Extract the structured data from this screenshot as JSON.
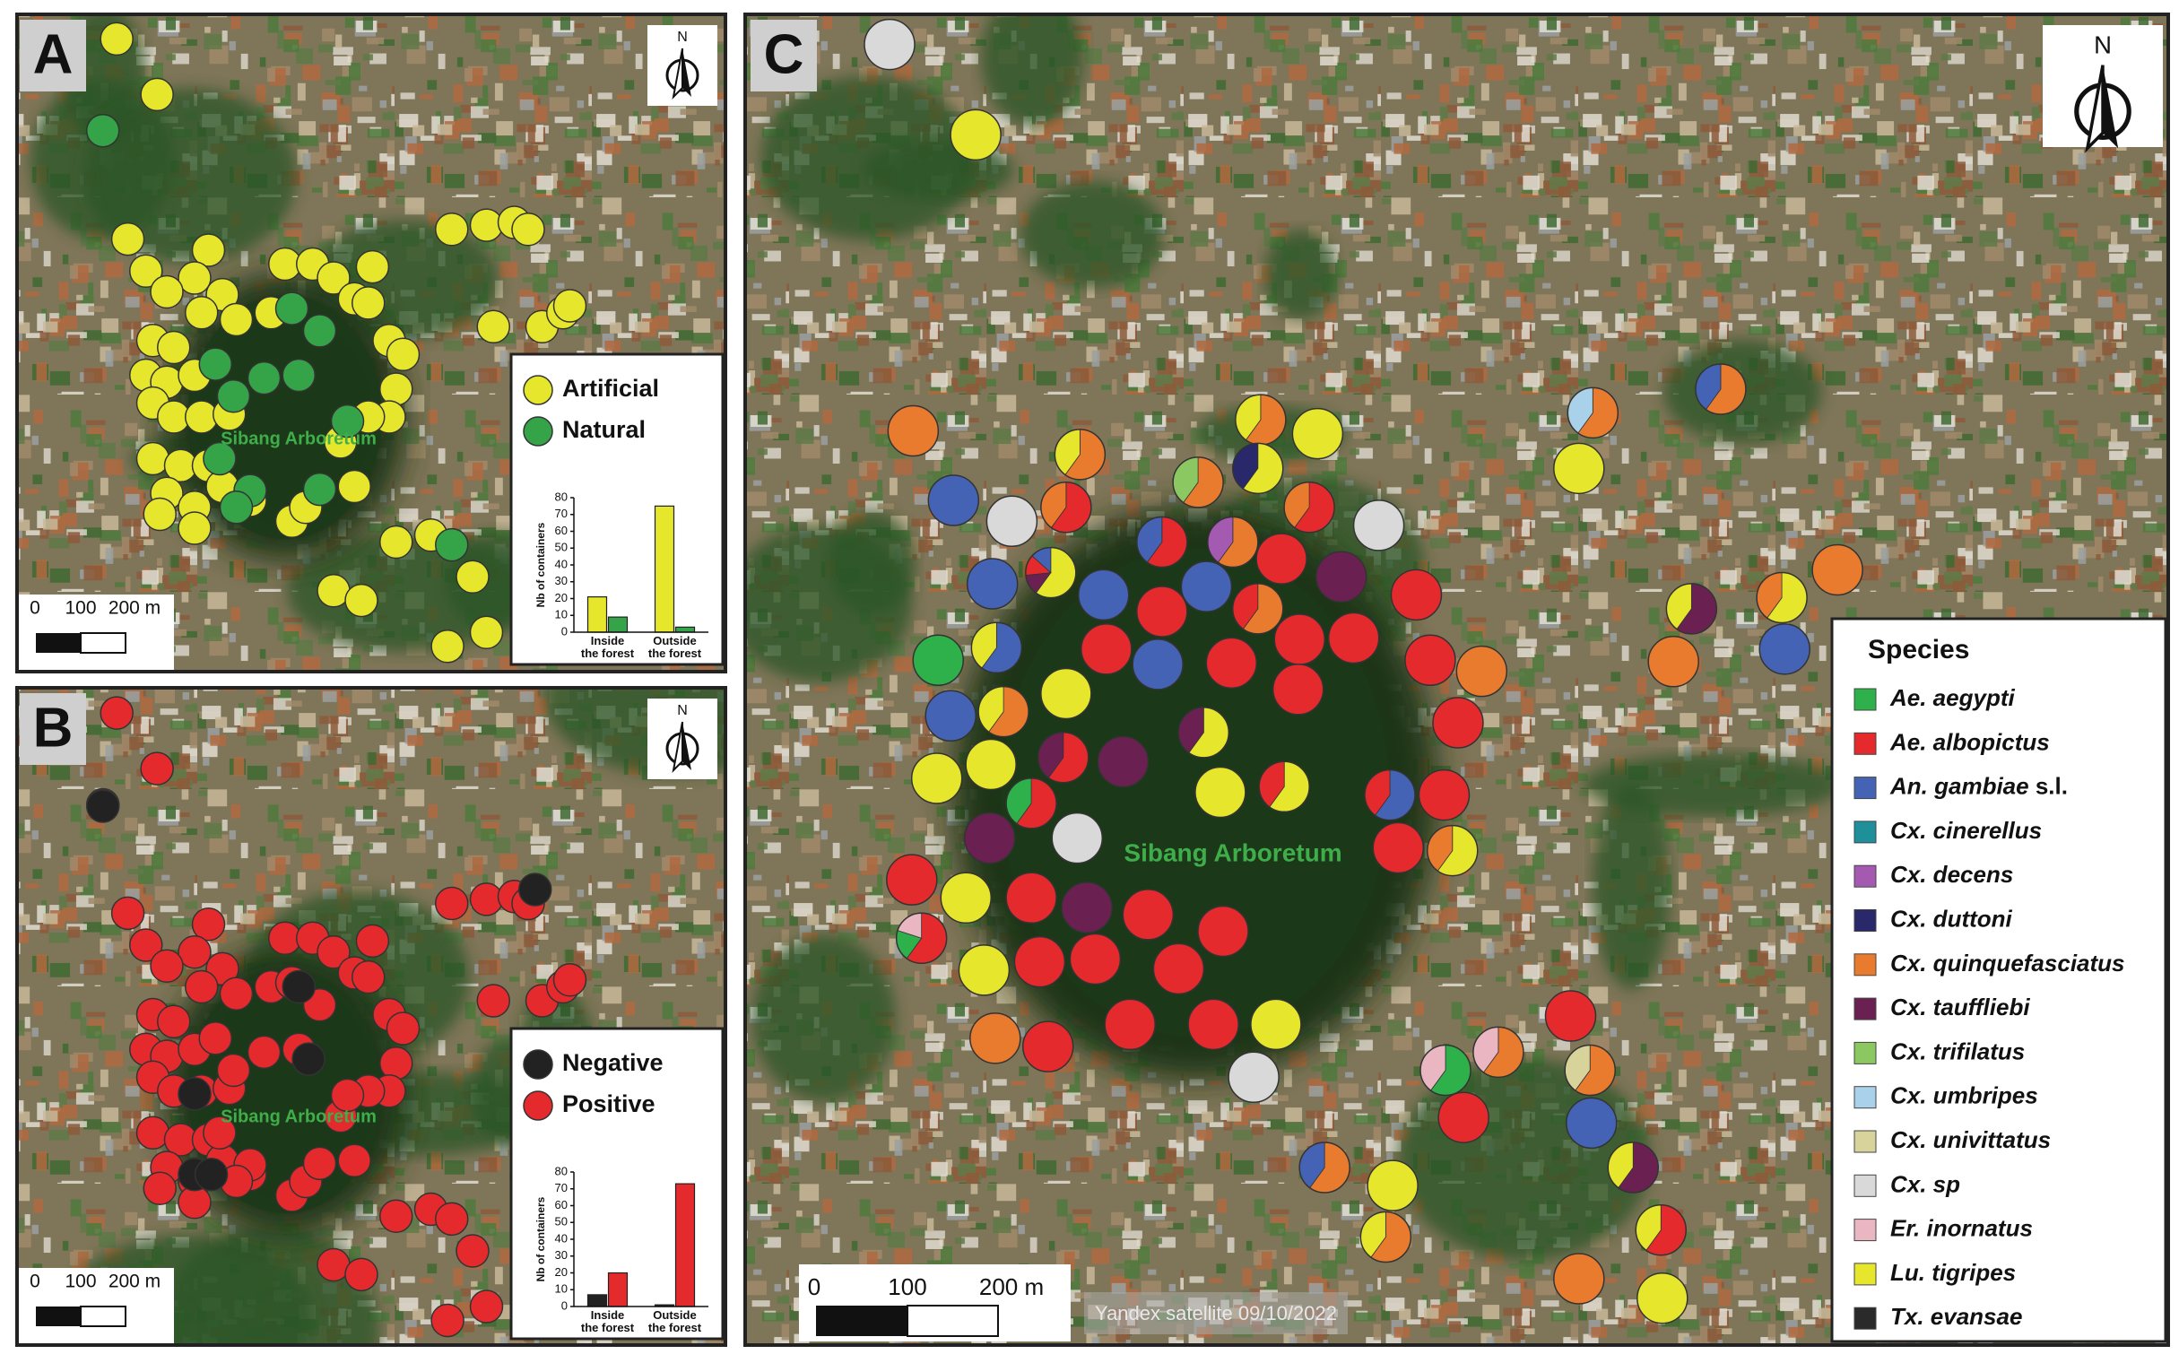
{
  "panels": [
    {
      "label": "A",
      "north": "N",
      "forest": "Sibang Arboretum",
      "scale": [
        "0",
        "100",
        "200 m"
      ]
    },
    {
      "label": "B",
      "north": "N",
      "forest": "Sibang Arboretum",
      "scale": [
        "0",
        "100",
        "200 m"
      ]
    },
    {
      "label": "C",
      "north": "N",
      "forest": "Sibang Arboretum",
      "scale": [
        "0",
        "100",
        "200 m"
      ],
      "credit": "Yandex satellite 09/10/2022",
      "legend": {
        "title": "Species",
        "items": [
          {
            "name": "Ae. aegypti",
            "color": "#2eb04a"
          },
          {
            "name": "Ae. albopictus",
            "color": "#e52a2d"
          },
          {
            "name": "An. gambiae",
            "suffix": "s.l.",
            "color": "#4463b4"
          },
          {
            "name": "Cx. cinerellus",
            "color": "#1f8f9a"
          },
          {
            "name": "Cx. decens",
            "color": "#a55ab2"
          },
          {
            "name": "Cx. duttoni",
            "color": "#28286a"
          },
          {
            "name": "Cx. quinquefasciatus",
            "color": "#e97b2f"
          },
          {
            "name": "Cx. tauffliebi",
            "color": "#6a2152"
          },
          {
            "name": "Cx. trifilatus",
            "color": "#8cc862"
          },
          {
            "name": "Cx. umbripes",
            "color": "#a9d1e9"
          },
          {
            "name": "Cx. univittatus",
            "color": "#d7d39b"
          },
          {
            "name": "Cx. sp",
            "color": "#d9d9d9"
          },
          {
            "name": "Er. inornatus",
            "color": "#e9b6c2"
          },
          {
            "name": "Lu. tigripes",
            "color": "#e6e62c"
          },
          {
            "name": "Tx. evansae",
            "color": "#2a2a2a"
          }
        ]
      }
    }
  ],
  "chart_data": [
    {
      "type": "bar",
      "y_label": "Nb of containers",
      "categories": [
        "Inside the forest",
        "Outside the forest"
      ],
      "series": [
        {
          "name": "Artificial",
          "color": "#e6e62c",
          "values": [
            21,
            75
          ]
        },
        {
          "name": "Natural",
          "color": "#35a448",
          "values": [
            9,
            3
          ]
        }
      ],
      "ylim": [
        0,
        80
      ],
      "yticks": [
        0,
        10,
        20,
        30,
        40,
        50,
        60,
        70,
        80
      ]
    },
    {
      "type": "bar",
      "y_label": "Nb of containers",
      "categories": [
        "Inside the forest",
        "Outside the forest"
      ],
      "series": [
        {
          "name": "Negative",
          "color": "#222222",
          "values": [
            7,
            1
          ]
        },
        {
          "name": "Positive",
          "color": "#e52a2d",
          "values": [
            20,
            73
          ]
        }
      ],
      "ylim": [
        0,
        80
      ],
      "yticks": [
        0,
        10,
        20,
        30,
        40,
        50,
        60,
        70,
        80
      ]
    }
  ]
}
